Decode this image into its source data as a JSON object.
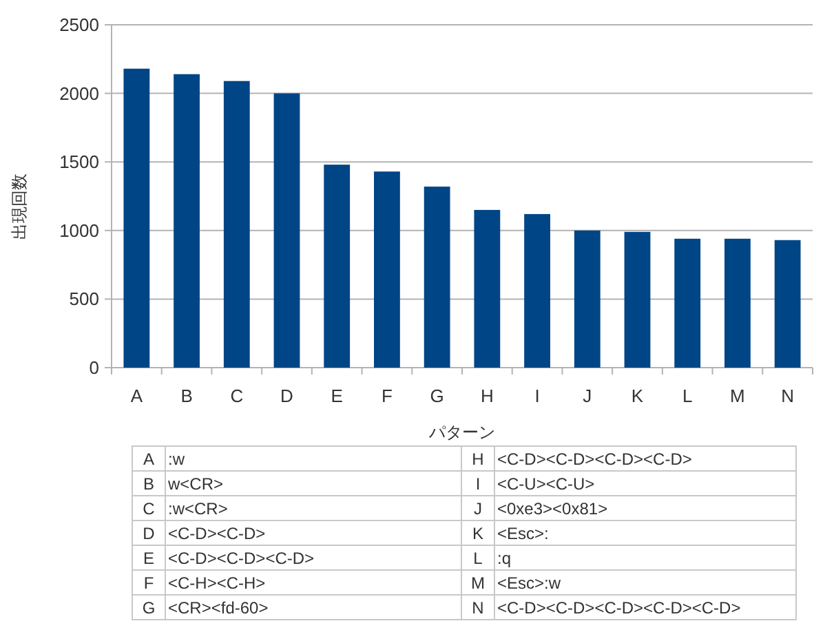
{
  "chart_data": {
    "type": "bar",
    "xlabel": "パターン",
    "ylabel": "出現回数",
    "categories": [
      "A",
      "B",
      "C",
      "D",
      "E",
      "F",
      "G",
      "H",
      "I",
      "J",
      "K",
      "L",
      "M",
      "N"
    ],
    "values": [
      2180,
      2140,
      2090,
      2000,
      1480,
      1430,
      1320,
      1150,
      1120,
      1000,
      990,
      940,
      940,
      930
    ],
    "color": "#004586",
    "ylim": [
      0,
      2500
    ],
    "yticks": [
      0,
      500,
      1000,
      1500,
      2000,
      2500
    ],
    "grid": "y",
    "annotations": [
      ":w",
      "w<CR>",
      ":w<CR>",
      "<C-D><C-D>",
      "<C-D><C-D><C-D>",
      "<C-H><C-H>",
      "<CR><fd-60>",
      "<C-D><C-D><C-D><C-D>",
      "<C-U><C-U>",
      "<0xe3><0x81>",
      "<Esc>:",
      ":q",
      "<Esc>:w",
      "<C-D><C-D><C-D><C-D><C-D>"
    ]
  }
}
